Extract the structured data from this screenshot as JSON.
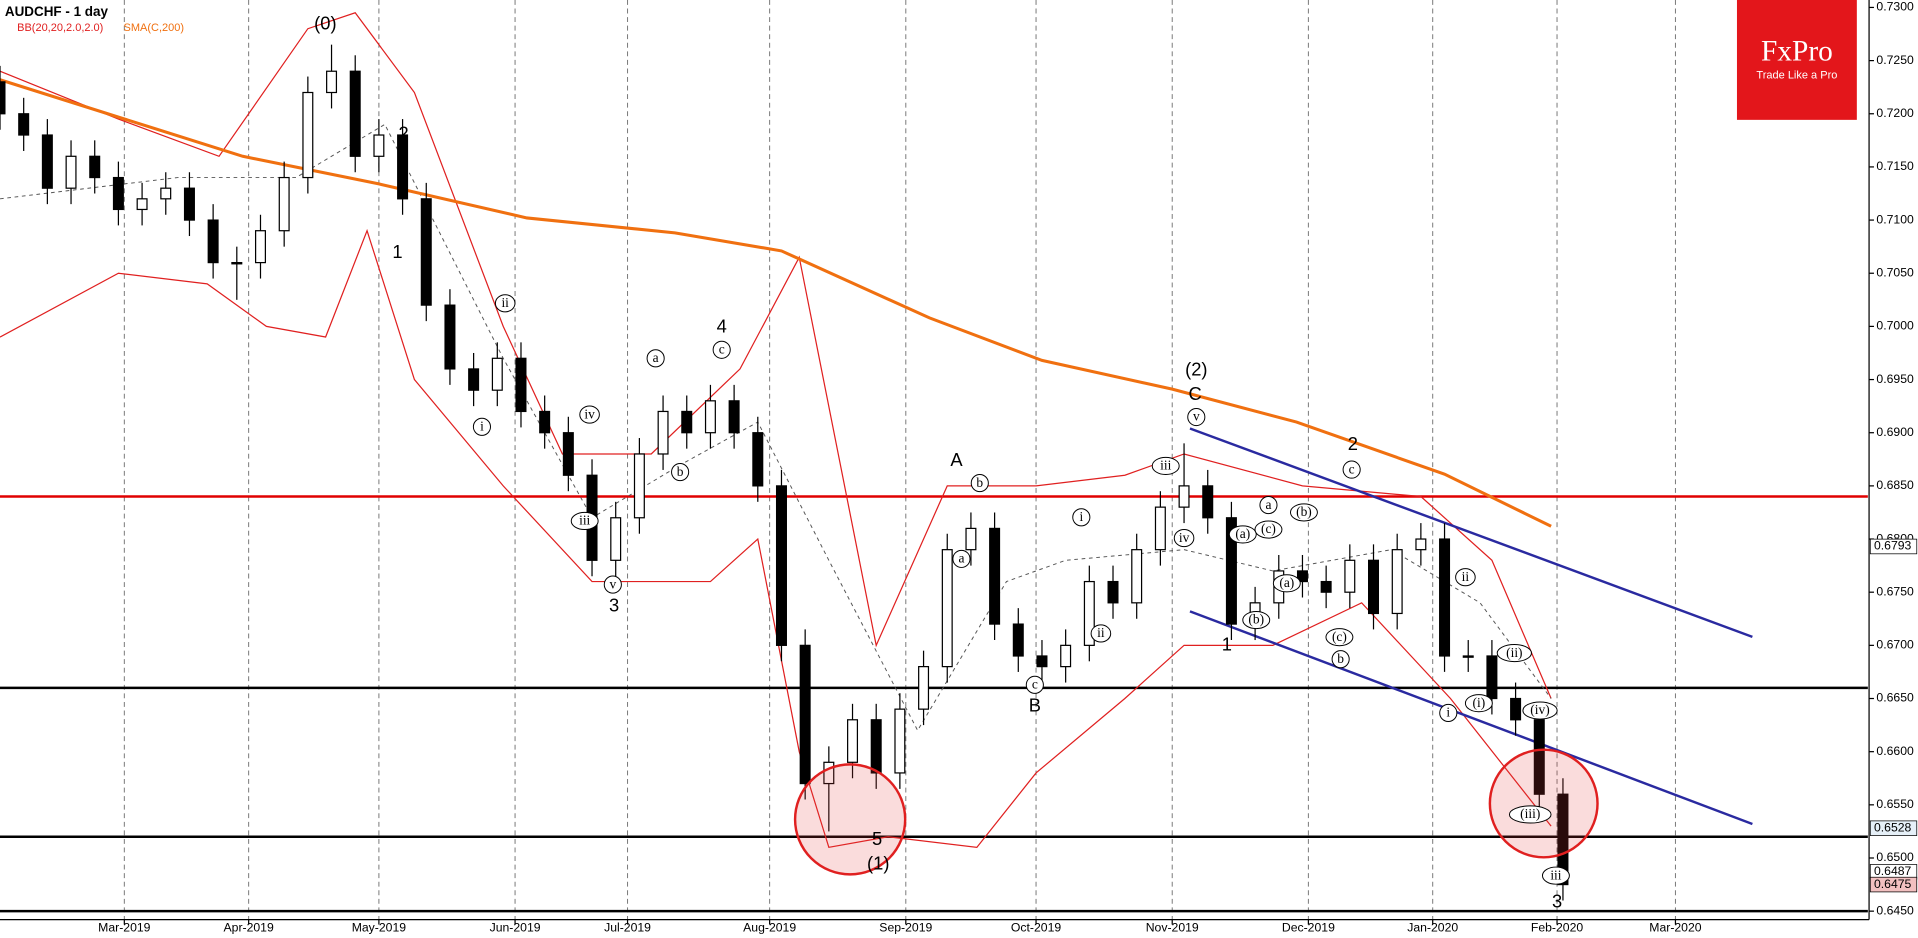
{
  "chart_data": {
    "type": "candlestick",
    "title": "AUDCHF - 1 day",
    "x": [
      0,
      4,
      8,
      12,
      16,
      20,
      24,
      28,
      32,
      36,
      40,
      44,
      48,
      52,
      56,
      60,
      64,
      68,
      72,
      76,
      80,
      84,
      88,
      92,
      96,
      100,
      104,
      108,
      112,
      116,
      120,
      124,
      128,
      132,
      136,
      140,
      144,
      148,
      152,
      156,
      160,
      164,
      168,
      172,
      176,
      180,
      184,
      188,
      192,
      196,
      200,
      204,
      208,
      212,
      216,
      220,
      224,
      228,
      232,
      236,
      240,
      244,
      248,
      252,
      256,
      260,
      264
    ],
    "open": [
      0.723,
      0.72,
      0.718,
      0.713,
      0.716,
      0.714,
      0.711,
      0.712,
      0.713,
      0.71,
      0.706,
      0.706,
      0.709,
      0.714,
      0.722,
      0.724,
      0.716,
      0.718,
      0.712,
      0.702,
      0.696,
      0.694,
      0.697,
      0.692,
      0.69,
      0.686,
      0.678,
      0.682,
      0.688,
      0.692,
      0.69,
      0.693,
      0.69,
      0.685,
      0.67,
      0.657,
      0.659,
      0.663,
      0.658,
      0.664,
      0.668,
      0.679,
      0.681,
      0.672,
      0.669,
      0.668,
      0.67,
      0.676,
      0.674,
      0.679,
      0.683,
      0.685,
      0.682,
      0.672,
      0.674,
      0.677,
      0.676,
      0.675,
      0.678,
      0.673,
      0.679,
      0.68,
      0.669,
      0.669,
      0.665,
      0.663,
      0.656
    ],
    "high": [
      0.7245,
      0.7215,
      0.7195,
      0.7175,
      0.7175,
      0.7155,
      0.7135,
      0.7145,
      0.7145,
      0.7115,
      0.7075,
      0.7105,
      0.7155,
      0.7235,
      0.7265,
      0.7255,
      0.7195,
      0.7195,
      0.7135,
      0.7035,
      0.6975,
      0.6985,
      0.6985,
      0.6935,
      0.6915,
      0.6875,
      0.6835,
      0.6895,
      0.6935,
      0.6935,
      0.6945,
      0.6945,
      0.6915,
      0.6865,
      0.6715,
      0.6605,
      0.6645,
      0.6645,
      0.6655,
      0.6695,
      0.6805,
      0.6825,
      0.6825,
      0.6735,
      0.6705,
      0.6715,
      0.6775,
      0.6775,
      0.6805,
      0.6845,
      0.689,
      0.6865,
      0.6835,
      0.6755,
      0.6785,
      0.6785,
      0.6775,
      0.6795,
      0.6795,
      0.6805,
      0.6815,
      0.6815,
      0.6705,
      0.6705,
      0.6665,
      0.6645,
      0.6575
    ],
    "low": [
      0.7185,
      0.7165,
      0.7115,
      0.7115,
      0.7125,
      0.7095,
      0.7095,
      0.7105,
      0.7085,
      0.7045,
      0.7025,
      0.7045,
      0.7075,
      0.7125,
      0.7205,
      0.7145,
      0.7145,
      0.7105,
      0.7005,
      0.6945,
      0.6925,
      0.6925,
      0.6905,
      0.6885,
      0.6845,
      0.6765,
      0.6765,
      0.6805,
      0.6865,
      0.6885,
      0.6885,
      0.6885,
      0.6835,
      0.6685,
      0.6555,
      0.6525,
      0.6575,
      0.6565,
      0.6565,
      0.6625,
      0.6665,
      0.6775,
      0.6705,
      0.6675,
      0.6665,
      0.6665,
      0.6685,
      0.6725,
      0.6725,
      0.6775,
      0.6815,
      0.6805,
      0.6705,
      0.6705,
      0.6725,
      0.6745,
      0.6735,
      0.6735,
      0.6715,
      0.6715,
      0.6775,
      0.6675,
      0.6675,
      0.6635,
      0.6615,
      0.6545,
      0.646
    ],
    "close": [
      0.72,
      0.718,
      0.713,
      0.716,
      0.714,
      0.711,
      0.712,
      0.713,
      0.71,
      0.706,
      0.706,
      0.709,
      0.714,
      0.722,
      0.724,
      0.716,
      0.718,
      0.712,
      0.702,
      0.696,
      0.694,
      0.697,
      0.692,
      0.69,
      0.686,
      0.678,
      0.682,
      0.688,
      0.692,
      0.69,
      0.693,
      0.69,
      0.685,
      0.67,
      0.657,
      0.659,
      0.663,
      0.658,
      0.664,
      0.668,
      0.679,
      0.681,
      0.672,
      0.669,
      0.668,
      0.67,
      0.676,
      0.674,
      0.679,
      0.683,
      0.685,
      0.682,
      0.672,
      0.674,
      0.677,
      0.676,
      0.675,
      0.678,
      0.673,
      0.679,
      0.68,
      0.669,
      0.669,
      0.665,
      0.663,
      0.656,
      0.6475
    ],
    "sma": {
      "name": "SMA(C,200)",
      "color": "#f07010",
      "x": [
        0,
        41,
        64,
        89,
        114,
        132,
        157,
        176,
        198,
        219,
        244,
        262
      ],
      "values": [
        0.7232,
        0.716,
        0.7134,
        0.7102,
        0.7088,
        0.7071,
        0.7008,
        0.6968,
        0.6941,
        0.691,
        0.6861,
        0.6812
      ]
    },
    "bb": {
      "name": "BB(20,20,2.0,2.0)",
      "color": "#e02020",
      "upper": {
        "x": [
          0,
          20,
          37,
          52,
          60,
          70,
          85,
          95,
          110,
          125,
          135,
          148,
          160,
          175,
          190,
          200,
          220,
          240,
          252,
          262
        ],
        "values": [
          0.724,
          0.7195,
          0.716,
          0.728,
          0.7295,
          0.722,
          0.7,
          0.688,
          0.688,
          0.696,
          0.7065,
          0.67,
          0.685,
          0.685,
          0.686,
          0.688,
          0.685,
          0.684,
          0.678,
          0.665
        ]
      },
      "lower": {
        "x": [
          0,
          20,
          35,
          45,
          55,
          62,
          70,
          85,
          100,
          120,
          128,
          135,
          140,
          150,
          165,
          175,
          190,
          200,
          215,
          230,
          245,
          262
        ],
        "values": [
          0.699,
          0.705,
          0.704,
          0.7,
          0.699,
          0.709,
          0.695,
          0.685,
          0.676,
          0.676,
          0.68,
          0.66,
          0.651,
          0.652,
          0.651,
          0.658,
          0.665,
          0.67,
          0.67,
          0.674,
          0.665,
          0.653
        ]
      },
      "middle": {
        "x": [
          0,
          30,
          50,
          65,
          85,
          100,
          115,
          128,
          140,
          155,
          170,
          180,
          200,
          215,
          235,
          250,
          262
        ],
        "values": [
          0.712,
          0.714,
          0.714,
          0.719,
          0.697,
          0.682,
          0.687,
          0.691,
          0.678,
          0.662,
          0.676,
          0.678,
          0.679,
          0.677,
          0.679,
          0.674,
          0.665
        ]
      }
    },
    "levels": [
      {
        "value": 0.684,
        "color": "#e00000"
      },
      {
        "value": 0.666,
        "color": "#000000"
      },
      {
        "value": 0.652,
        "color": "#000000"
      },
      {
        "value": 0.645,
        "color": "#000000"
      }
    ],
    "channels": [
      {
        "x": [
          201,
          296
        ],
        "values": [
          0.6904,
          0.6708
        ],
        "color": "#2a2aa0"
      },
      {
        "x": [
          201,
          296
        ],
        "values": [
          0.6732,
          0.6532
        ],
        "color": "#2a2aa0"
      }
    ],
    "price_labels": [
      {
        "value": 0.6793,
        "color": "#ffffff"
      },
      {
        "value": 0.6528,
        "color": "#e6f0f8"
      },
      {
        "value": 0.6487,
        "color": "#ffffff"
      },
      {
        "value": 0.6475,
        "color": "#f2c0c0"
      }
    ],
    "annotations": [
      "(0)",
      "2",
      "1",
      "ii",
      "i",
      "iv",
      "iii",
      "v",
      "3",
      "a",
      "b",
      "c",
      "4",
      "A",
      "b",
      "a",
      "c",
      "B",
      "i",
      "ii",
      "5",
      "(1)",
      "(2)",
      "C",
      "v",
      "iii",
      "iv",
      "a",
      "(a)",
      "(c)",
      "(b)",
      "(a)",
      "(b)",
      "1",
      "2",
      "c",
      "(c)",
      "b",
      "ii",
      "(ii)",
      "i",
      "(i)",
      "(iv)",
      "(iii)",
      "iii",
      "3"
    ],
    "xlim": [
      0,
      315.5
    ],
    "ylim": [
      0.6442,
      0.7307
    ],
    "xticks": [
      {
        "value": 21,
        "label": "Mar-2019"
      },
      {
        "value": 42,
        "label": "Apr-2019"
      },
      {
        "value": 64,
        "label": "May-2019"
      },
      {
        "value": 87,
        "label": "Jun-2019"
      },
      {
        "value": 106,
        "label": "Jul-2019"
      },
      {
        "value": 130,
        "label": "Aug-2019"
      },
      {
        "value": 153,
        "label": "Sep-2019"
      },
      {
        "value": 175,
        "label": "Oct-2019"
      },
      {
        "value": 198,
        "label": "Nov-2019"
      },
      {
        "value": 221,
        "label": "Dec-2019"
      },
      {
        "value": 242,
        "label": "Jan-2020"
      },
      {
        "value": 263,
        "label": "Feb-2020"
      },
      {
        "value": 283,
        "label": "Mar-2020"
      }
    ],
    "yticks": [
      {
        "value": 0.645,
        "label": "0.6450"
      },
      {
        "value": 0.65,
        "label": "0.6500"
      },
      {
        "value": 0.655,
        "label": "0.6550"
      },
      {
        "value": 0.66,
        "label": "0.6600"
      },
      {
        "value": 0.665,
        "label": "0.6650"
      },
      {
        "value": 0.67,
        "label": "0.6700"
      },
      {
        "value": 0.675,
        "label": "0.6750"
      },
      {
        "value": 0.68,
        "label": "0.6800"
      },
      {
        "value": 0.685,
        "label": "0.6850"
      },
      {
        "value": 0.69,
        "label": "0.6900"
      },
      {
        "value": 0.695,
        "label": "0.6950"
      },
      {
        "value": 0.7,
        "label": "0.7000"
      },
      {
        "value": 0.705,
        "label": "0.7050"
      },
      {
        "value": 0.71,
        "label": "0.7100"
      },
      {
        "value": 0.715,
        "label": "0.7150"
      },
      {
        "value": 0.72,
        "label": "0.7200"
      },
      {
        "value": 0.725,
        "label": "0.7250"
      },
      {
        "value": 0.73,
        "label": "0.7300"
      }
    ],
    "grid": true
  },
  "logo": {
    "brand": "FxPro",
    "tagline": "Trade Like a Pro"
  }
}
